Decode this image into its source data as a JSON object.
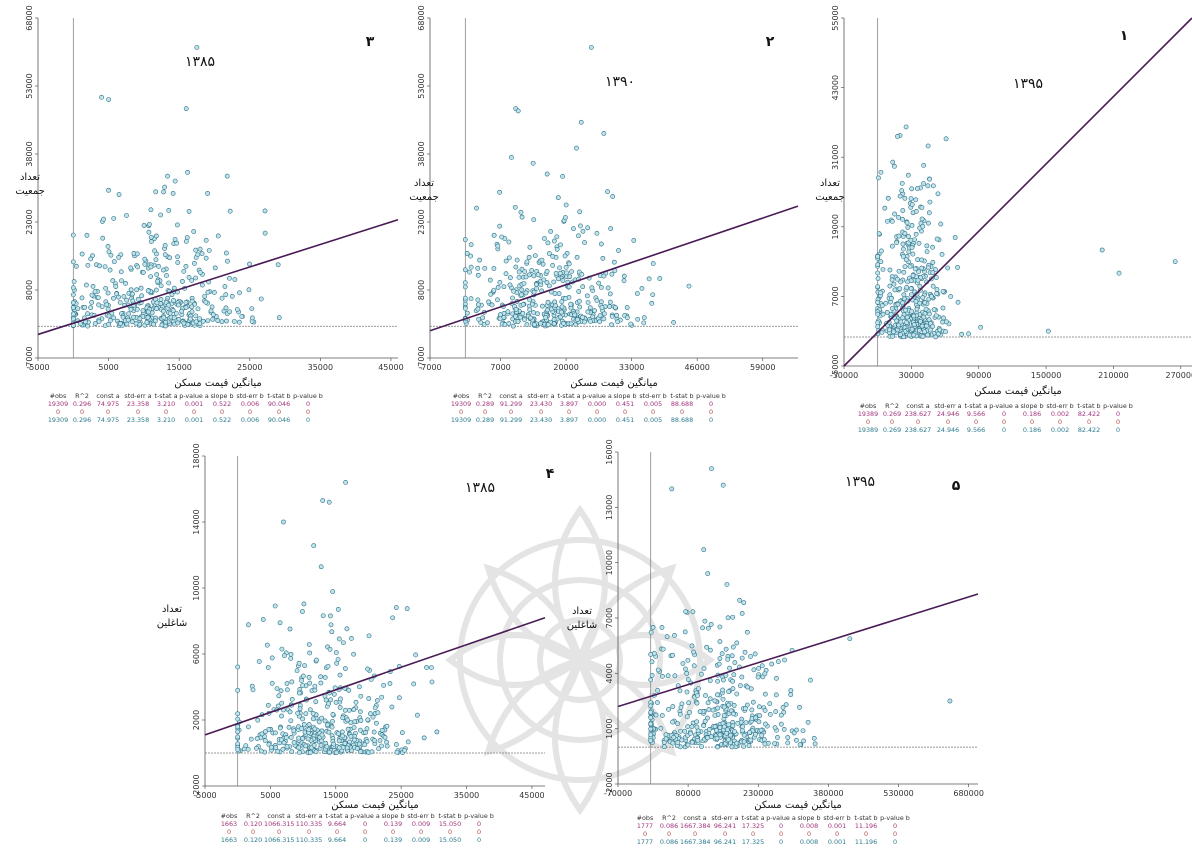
{
  "colors": {
    "point_fill": "#bfe3ea",
    "point_stroke": "#2a6f86",
    "fit_line": "#4a1a55",
    "axis": "#777777",
    "watermark": "#e9e9e9"
  },
  "chart_data": [
    {
      "type": "scatter",
      "panel_number": "۳",
      "year": "۱۳۸۵",
      "ylabel_lines": [
        "تعداد",
        "جمعیت"
      ],
      "xlabel": "میانگین قیمت مسکن",
      "xlim": [
        -5000,
        46000
      ],
      "ylim": [
        -7000,
        68000
      ],
      "xticks": [
        "-5000",
        "5000",
        "15000",
        "25000",
        "35000",
        "45000"
      ],
      "yticks": [
        "-7000",
        "8000",
        "23000",
        "38000",
        "53000",
        "68000"
      ],
      "fit": {
        "x": [
          -5000,
          46000
        ],
        "y": [
          -1800,
          23500
        ]
      },
      "ref_x": 0,
      "ref_y": 0,
      "cloud": {
        "x_center": 12000,
        "x_spread": 9000,
        "y_center": 9000,
        "y_spread": 12000
      },
      "outliers": [
        {
          "x": 17500,
          "y": 61500
        },
        {
          "x": 4000,
          "y": 50500
        },
        {
          "x": 5000,
          "y": 50000
        },
        {
          "x": 16000,
          "y": 48000
        }
      ],
      "stats": {
        "headers": [
          "#obs",
          "R^2",
          "const a",
          "std-err a",
          "t-stat a",
          "p-value a",
          "slope b",
          "std-err b",
          "t-stat b",
          "p-value b"
        ],
        "rows": [
          [
            "19309",
            "0.296",
            "74.975",
            "23.358",
            "3.210",
            "0.001",
            "0.522",
            "0.006",
            "90.046",
            "0"
          ],
          [
            "0",
            "0",
            "0",
            "0",
            "0",
            "0",
            "0",
            "0",
            "0",
            "0"
          ],
          [
            "19309",
            "0.296",
            "74.975",
            "23.358",
            "3.210",
            "0.001",
            "0.522",
            "0.006",
            "90.046",
            "0"
          ]
        ]
      }
    },
    {
      "type": "scatter",
      "panel_number": "۲",
      "year": "۱۳۹۰",
      "ylabel_lines": [
        "تعداد",
        "جمعیت"
      ],
      "xlabel": "میانگین قیمت مسکن",
      "xlim": [
        -7000,
        66000
      ],
      "ylim": [
        -7000,
        68000
      ],
      "xticks": [
        "-7000",
        "7000",
        "20000",
        "33000",
        "46000",
        "59000"
      ],
      "yticks": [
        "-7000",
        "8000",
        "23000",
        "38000",
        "53000",
        "68000"
      ],
      "fit": {
        "x": [
          -7000,
          66000
        ],
        "y": [
          -1000,
          26500
        ]
      },
      "ref_x": 0,
      "ref_y": 0,
      "cloud": {
        "x_center": 17000,
        "x_spread": 12000,
        "y_center": 9000,
        "y_spread": 12000
      },
      "outliers": [
        {
          "x": 25000,
          "y": 61500
        },
        {
          "x": 10000,
          "y": 48000
        },
        {
          "x": 10500,
          "y": 47500
        },
        {
          "x": 23000,
          "y": 45000
        }
      ],
      "stats": {
        "headers": [
          "#obs",
          "R^2",
          "const a",
          "std-err a",
          "t-stat a",
          "p-value a",
          "slope b",
          "std-err b",
          "t-stat b",
          "p-value b"
        ],
        "rows": [
          [
            "19309",
            "0.289",
            "91.299",
            "23.430",
            "3.897",
            "0.000",
            "0.451",
            "0.005",
            "88.688",
            "0"
          ],
          [
            "0",
            "0",
            "0",
            "0",
            "0",
            "0",
            "0",
            "0",
            "0",
            "0"
          ],
          [
            "19309",
            "0.289",
            "91.299",
            "23.430",
            "3.897",
            "0.000",
            "0.451",
            "0.005",
            "88.688",
            "0"
          ]
        ]
      }
    },
    {
      "type": "scatter",
      "panel_number": "۱",
      "year": "۱۳۹۵",
      "ylabel_lines": [
        "تعداد",
        "جمعیت"
      ],
      "xlabel": "میانگین قیمت مسکن",
      "xlim": [
        -30000,
        280000
      ],
      "ylim": [
        -5000,
        55000
      ],
      "xticks": [
        "-30000",
        "30000",
        "90000",
        "150000",
        "210000",
        "270000"
      ],
      "yticks": [
        "-5000",
        "7000",
        "19000",
        "31000",
        "43000",
        "55000"
      ],
      "fit": {
        "x": [
          -30000,
          280000
        ],
        "y": [
          -5000,
          55000
        ]
      },
      "ref_x": 0,
      "ref_y": 0,
      "cloud": {
        "x_center": 30000,
        "x_spread": 25000,
        "y_center": 12000,
        "y_spread": 14000
      },
      "outliers": [
        {
          "x": 265000,
          "y": 13000
        },
        {
          "x": 215000,
          "y": 11000
        },
        {
          "x": 200000,
          "y": 15000
        },
        {
          "x": 152000,
          "y": 1000
        }
      ],
      "stats": {
        "headers": [
          "#obs",
          "R^2",
          "const a",
          "std-err a",
          "t-stat a",
          "p-value a",
          "slope b",
          "std-err b",
          "t-stat b",
          "p-value b"
        ],
        "rows": [
          [
            "19389",
            "0.269",
            "238.627",
            "24.946",
            "9.566",
            "0",
            "0.186",
            "0.002",
            "82.422",
            "0"
          ],
          [
            "0",
            "0",
            "0",
            "0",
            "0",
            "0",
            "0",
            "0",
            "0",
            "0"
          ],
          [
            "19389",
            "0.269",
            "238.627",
            "24.946",
            "9.566",
            "0",
            "0.186",
            "0.002",
            "82.422",
            "0"
          ]
        ]
      }
    },
    {
      "type": "scatter",
      "panel_number": "۴",
      "year": "۱۳۸۵",
      "ylabel_lines": [
        "تعداد",
        "شاغلین"
      ],
      "xlabel": "میانگین قیمت مسکن",
      "xlim": [
        -5000,
        47000
      ],
      "ylim": [
        -2000,
        18000
      ],
      "xticks": [
        "-5000",
        "5000",
        "15000",
        "25000",
        "35000",
        "45000"
      ],
      "yticks": [
        "-2000",
        "2000",
        "6000",
        "10000",
        "14000",
        "18000"
      ],
      "fit": {
        "x": [
          -5000,
          47000
        ],
        "y": [
          1100,
          8200
        ]
      },
      "ref_x": 0,
      "ref_y": 0,
      "cloud": {
        "x_center": 13000,
        "x_spread": 9000,
        "y_center": 3200,
        "y_spread": 3800
      },
      "outliers": [
        {
          "x": 16500,
          "y": 16400
        },
        {
          "x": 13000,
          "y": 15300
        },
        {
          "x": 7000,
          "y": 14000
        },
        {
          "x": 14000,
          "y": 15200
        }
      ],
      "stats": {
        "headers": [
          "#obs",
          "R^2",
          "const a",
          "std-err a",
          "t-stat a",
          "p-value a",
          "slope b",
          "std-err b",
          "t-stat b",
          "p-value b"
        ],
        "rows": [
          [
            "1663",
            "0.120",
            "1066.315",
            "110.335",
            "9.664",
            "0",
            "0.139",
            "0.009",
            "15.050",
            "0"
          ],
          [
            "0",
            "0",
            "0",
            "0",
            "0",
            "0",
            "0",
            "0",
            "0",
            "0"
          ],
          [
            "1663",
            "0.120",
            "1066.315",
            "110.335",
            "9.664",
            "0",
            "0.139",
            "0.009",
            "15.050",
            "0"
          ]
        ]
      }
    },
    {
      "type": "scatter",
      "panel_number": "۵",
      "year": "۱۳۹۵",
      "ylabel_lines": [
        "تعداد",
        "شاغلین"
      ],
      "xlabel": "میانگین قیمت مسکن",
      "xlim": [
        -70000,
        700000
      ],
      "ylim": [
        -2000,
        16000
      ],
      "xticks": [
        "-70000",
        "80000",
        "230000",
        "380000",
        "530000",
        "680000"
      ],
      "yticks": [
        "-2000",
        "1000",
        "4000",
        "7000",
        "10000",
        "13000",
        "16000"
      ],
      "fit": {
        "x": [
          -70000,
          700000
        ],
        "y": [
          2200,
          8300
        ]
      },
      "ref_x": 0,
      "ref_y": 0,
      "cloud": {
        "x_center": 150000,
        "x_spread": 120000,
        "y_center": 3200,
        "y_spread": 3500
      },
      "outliers": [
        {
          "x": 130000,
          "y": 15100
        },
        {
          "x": 155000,
          "y": 14200
        },
        {
          "x": 45000,
          "y": 14000
        },
        {
          "x": 640000,
          "y": 2500
        }
      ],
      "stats": {
        "headers": [
          "#obs",
          "R^2",
          "const a",
          "std-err a",
          "t-stat a",
          "p-value a",
          "slope b",
          "std-err b",
          "t-stat b",
          "p-value b"
        ],
        "rows": [
          [
            "1777",
            "0.086",
            "1667.384",
            "96.241",
            "17.325",
            "0",
            "0.008",
            "0.001",
            "11.196",
            "0"
          ],
          [
            "0",
            "0",
            "0",
            "0",
            "0",
            "0",
            "0",
            "0",
            "0",
            "0"
          ],
          [
            "1777",
            "0.086",
            "1667.384",
            "96.241",
            "17.325",
            "0",
            "0.008",
            "0.001",
            "11.196",
            "0"
          ]
        ]
      }
    }
  ]
}
